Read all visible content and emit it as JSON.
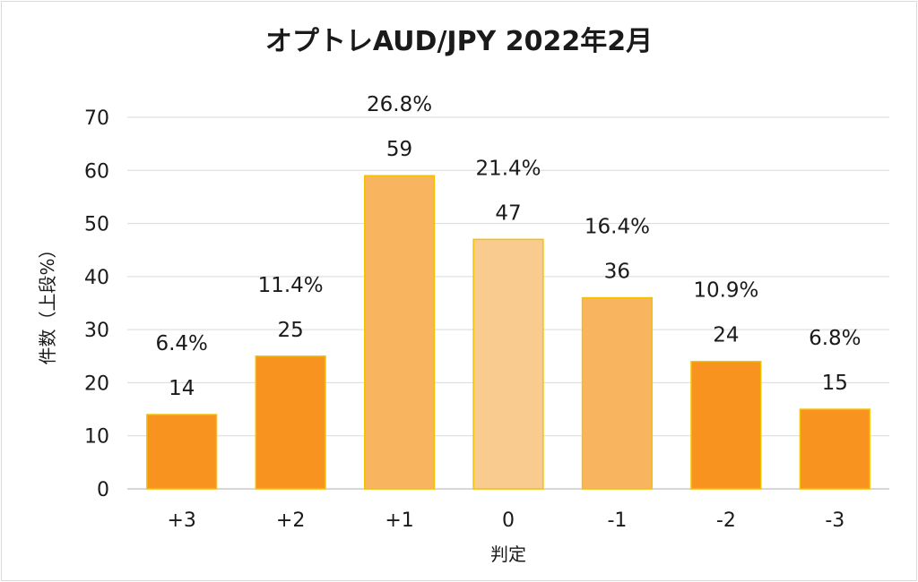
{
  "chart_data": {
    "type": "bar",
    "title": "オプトレAUD/JPY 2022年2月",
    "xlabel": "判定",
    "ylabel": "件数（上段%）",
    "categories": [
      "+3",
      "+2",
      "+1",
      "0",
      "-1",
      "-2",
      "-3"
    ],
    "values": [
      14,
      25,
      59,
      47,
      36,
      24,
      15
    ],
    "percent_labels": [
      "6.4%",
      "11.4%",
      "26.8%",
      "21.4%",
      "16.4%",
      "10.9%",
      "6.8%"
    ],
    "bar_colors": [
      "#f7931e",
      "#f7931e",
      "#f8b45f",
      "#f9cb8e",
      "#f8b45f",
      "#f7931e",
      "#f7931e"
    ],
    "bar_stroke": "#f2c200",
    "ylim": [
      0,
      70
    ],
    "yticks": [
      0,
      10,
      20,
      30,
      40,
      50,
      60,
      70
    ],
    "grid": true,
    "legend": "none"
  }
}
